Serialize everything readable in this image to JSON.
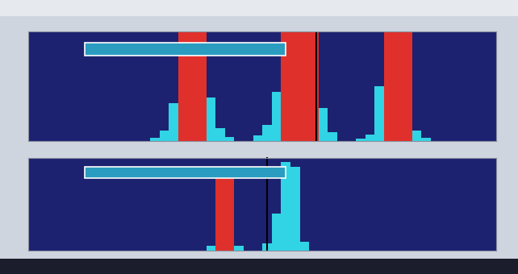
{
  "chart_data": [
    {
      "type": "histogram",
      "bins": [
        0,
        2,
        4,
        6,
        8,
        10,
        12,
        14,
        16,
        18,
        20,
        22,
        24,
        26,
        28,
        30,
        32,
        34,
        36,
        38,
        40,
        42,
        44,
        46,
        48,
        50,
        52,
        54,
        56,
        58,
        60,
        62,
        64,
        66,
        68,
        70,
        72,
        74,
        76,
        78,
        80,
        82,
        84,
        86,
        88,
        90,
        92,
        94,
        96,
        98,
        100
      ],
      "counts": [
        0,
        0,
        0,
        0,
        0,
        0,
        0,
        0,
        0,
        0,
        0,
        0,
        0,
        3,
        10,
        35,
        100,
        100,
        100,
        40,
        12,
        4,
        0,
        0,
        5,
        15,
        45,
        100,
        100,
        100,
        100,
        30,
        8,
        0,
        0,
        2,
        6,
        50,
        100,
        100,
        100,
        10,
        3,
        0,
        0,
        0,
        0,
        0,
        0,
        0
      ],
      "colors": [
        "#30d4e4",
        "#30d4e4",
        "#30d4e4",
        "#30d4e4",
        "#30d4e4",
        "#30d4e4",
        "#30d4e4",
        "#30d4e4",
        "#30d4e4",
        "#30d4e4",
        "#30d4e4",
        "#30d4e4",
        "#30d4e4",
        "#30d4e4",
        "#30d4e4",
        "#30d4e4",
        "#e0302c",
        "#e0302c",
        "#e0302c",
        "#30d4e4",
        "#30d4e4",
        "#30d4e4",
        "#30d4e4",
        "#30d4e4",
        "#30d4e4",
        "#30d4e4",
        "#30d4e4",
        "#e0302c",
        "#e0302c",
        "#e0302c",
        "#e0302c",
        "#30d4e4",
        "#30d4e4",
        "#30d4e4",
        "#30d4e4",
        "#30d4e4",
        "#30d4e4",
        "#30d4e4",
        "#e0302c",
        "#e0302c",
        "#e0302c",
        "#30d4e4",
        "#30d4e4",
        "#30d4e4",
        "#30d4e4",
        "#30d4e4",
        "#30d4e4",
        "#30d4e4",
        "#30d4e4",
        "#30d4e4"
      ],
      "gate_x": [
        61.5
      ],
      "xlim": [
        0,
        100
      ],
      "ylim": [
        0,
        100
      ],
      "xticks": [],
      "yticks": [],
      "tick_labels": false,
      "grid": false
    },
    {
      "type": "histogram",
      "bins": [
        0,
        2,
        4,
        6,
        8,
        10,
        12,
        14,
        16,
        18,
        20,
        22,
        24,
        26,
        28,
        30,
        32,
        34,
        36,
        38,
        40,
        42,
        44,
        46,
        48,
        50,
        52,
        54,
        56,
        58,
        60,
        62,
        64,
        66,
        68,
        70,
        72,
        74,
        76,
        78,
        80,
        82,
        84,
        86,
        88,
        90,
        92,
        94,
        96,
        98,
        100
      ],
      "counts": [
        0,
        0,
        0,
        0,
        0,
        0,
        0,
        0,
        0,
        0,
        0,
        0,
        0,
        0,
        0,
        0,
        0,
        0,
        0,
        5,
        80,
        80,
        5,
        0,
        0,
        8,
        40,
        95,
        90,
        10,
        0,
        0,
        0,
        0,
        0,
        0,
        0,
        0,
        0,
        0,
        0,
        0,
        0,
        0,
        0,
        0,
        0,
        0,
        0,
        0
      ],
      "colors": [
        "#30d4e4",
        "#30d4e4",
        "#30d4e4",
        "#30d4e4",
        "#30d4e4",
        "#30d4e4",
        "#30d4e4",
        "#30d4e4",
        "#30d4e4",
        "#30d4e4",
        "#30d4e4",
        "#30d4e4",
        "#30d4e4",
        "#30d4e4",
        "#30d4e4",
        "#30d4e4",
        "#30d4e4",
        "#30d4e4",
        "#30d4e4",
        "#30d4e4",
        "#e0302c",
        "#e0302c",
        "#30d4e4",
        "#30d4e4",
        "#30d4e4",
        "#30d4e4",
        "#30d4e4",
        "#30d4e4",
        "#30d4e4",
        "#30d4e4",
        "#30d4e4",
        "#30d4e4",
        "#30d4e4",
        "#30d4e4",
        "#30d4e4",
        "#30d4e4",
        "#30d4e4",
        "#30d4e4",
        "#30d4e4",
        "#30d4e4",
        "#30d4e4",
        "#30d4e4",
        "#30d4e4",
        "#30d4e4",
        "#30d4e4",
        "#30d4e4",
        "#30d4e4",
        "#30d4e4",
        "#30d4e4",
        "#30d4e4"
      ],
      "gate_x": [
        51
      ],
      "xlim": [
        0,
        100
      ],
      "ylim": [
        0,
        100
      ],
      "xticks": [],
      "yticks": [],
      "tick_labels": false,
      "grid": false
    }
  ]
}
